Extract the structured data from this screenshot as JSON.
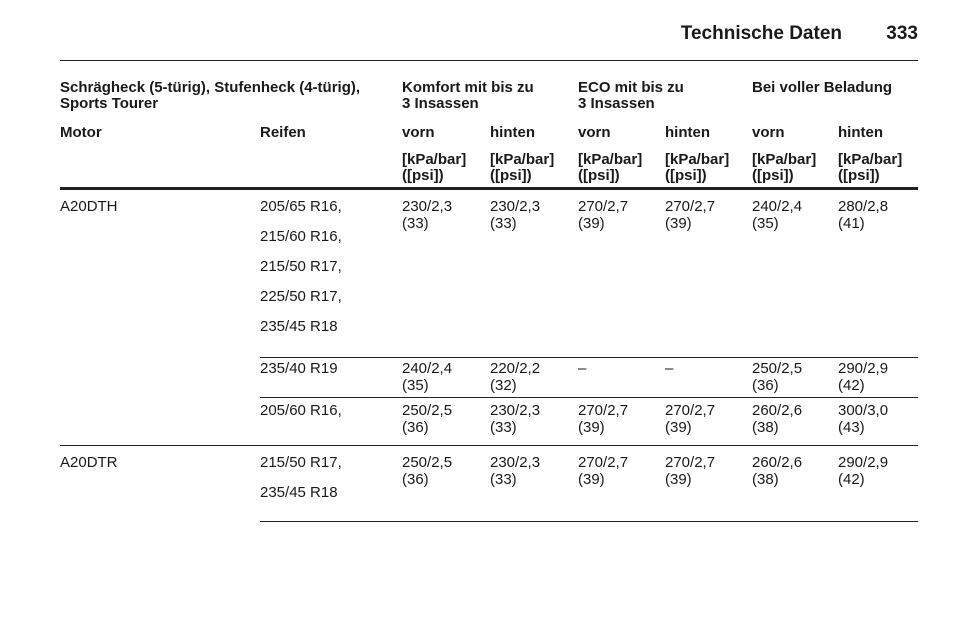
{
  "header": {
    "title": "Technische Daten",
    "page": "333"
  },
  "table": {
    "group_headers": [
      [
        "Schrägheck (5-türig), Stufenheck (4-türig),",
        "Sports Tourer"
      ],
      [
        "Komfort mit bis zu",
        "3 Insassen"
      ],
      [
        "ECO mit bis zu",
        "3 Insassen"
      ],
      [
        "Bei voller Beladung"
      ]
    ],
    "columns": [
      "Motor",
      "Reifen",
      "vorn",
      "hinten",
      "vorn",
      "hinten",
      "vorn",
      "hinten"
    ],
    "units": [
      [
        "[kPa/bar]",
        "([psi])"
      ],
      [
        "[kPa/bar]",
        "([psi])"
      ],
      [
        "[kPa/bar]",
        "([psi])"
      ],
      [
        "[kPa/bar]",
        "([psi])"
      ],
      [
        "[kPa/bar]",
        "([psi])"
      ],
      [
        "[kPa/bar]",
        "([psi])"
      ]
    ],
    "rows": [
      {
        "motor": "A20DTH",
        "tires": [
          "205/65 R16,",
          "215/60 R16,",
          "215/50 R17,",
          "225/50 R17,",
          "235/45 R18"
        ],
        "pressures": [
          [
            "230/2,3",
            "(33)"
          ],
          [
            "230/2,3",
            "(33)"
          ],
          [
            "270/2,7",
            "(39)"
          ],
          [
            "270/2,7",
            "(39)"
          ],
          [
            "240/2,4",
            "(35)"
          ],
          [
            "280/2,8",
            "(41)"
          ]
        ]
      },
      {
        "tires": [
          "235/40 R19"
        ],
        "pressures": [
          [
            "240/2,4",
            "(35)"
          ],
          [
            "220/2,2",
            "(32)"
          ],
          [
            "–"
          ],
          [
            "–"
          ],
          [
            "250/2,5",
            "(36)"
          ],
          [
            "290/2,9",
            "(42)"
          ]
        ]
      },
      {
        "tires": [
          "205/60 R16,"
        ],
        "pressures": [
          [
            "250/2,5",
            "(36)"
          ],
          [
            "230/2,3",
            "(33)"
          ],
          [
            "270/2,7",
            "(39)"
          ],
          [
            "270/2,7",
            "(39)"
          ],
          [
            "260/2,6",
            "(38)"
          ],
          [
            "300/3,0",
            "(43)"
          ]
        ]
      },
      {
        "motor": "A20DTR",
        "tires": [
          "215/50 R17,",
          "235/45 R18"
        ],
        "pressures": [
          [
            "250/2,5",
            "(36)"
          ],
          [
            "230/2,3",
            "(33)"
          ],
          [
            "270/2,7",
            "(39)"
          ],
          [
            "270/2,7",
            "(39)"
          ],
          [
            "260/2,6",
            "(38)"
          ],
          [
            "290/2,9",
            "(42)"
          ]
        ]
      }
    ]
  }
}
